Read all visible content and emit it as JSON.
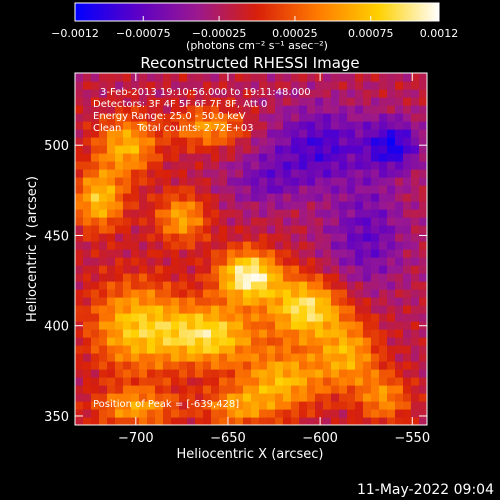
{
  "chart_data": {
    "type": "heatmap",
    "title": "Reconstructed RHESSI Image",
    "xlabel": "Heliocentric X (arcsec)",
    "ylabel": "Heliocentric Y (arcsec)",
    "xlim": [
      -733,
      -542
    ],
    "ylim": [
      345,
      540
    ],
    "x_ticks": [
      -700,
      -650,
      -600,
      -550
    ],
    "y_ticks": [
      350,
      400,
      450,
      500
    ],
    "x_tick_labels": [
      "−700",
      "−650",
      "−600",
      "−550"
    ],
    "y_tick_labels": [
      "350",
      "400",
      "450",
      "500"
    ],
    "colorbar": {
      "range": [
        -0.0012,
        0.0012
      ],
      "ticks": [
        -0.0012,
        -0.00075,
        -0.00025,
        0.00025,
        0.00075,
        0.0012
      ],
      "tick_labels": [
        "−0.0012",
        "−0.00075",
        "−0.00025",
        "0.00025",
        "0.00075",
        "0.0012"
      ],
      "units_label": "(photons cm⁻² s⁻¹ asec⁻²)",
      "colors": [
        "#0000ff",
        "#5a00c8",
        "#9a1890",
        "#d8200a",
        "#ff7a00",
        "#ffd000",
        "#ffffff"
      ]
    },
    "annotations": {
      "time_range": "3-Feb-2013 19:10:56.000 to 19:11:48.000",
      "detectors": "Detectors: 3F 4F 5F 6F 7F 8F, Att 0",
      "energy": "Energy Range: 25.0 - 50.0 keV",
      "clean_counts": "Clean     Total counts: 2.72E+03",
      "peak": "Position of Peak = [-639,428]"
    },
    "peak_position": [
      -639,
      428
    ],
    "sources": [
      {
        "x": -639,
        "y": 428,
        "amp": 1.0,
        "sx": 12,
        "sy": 10
      },
      {
        "x": -608,
        "y": 410,
        "amp": 0.85,
        "sx": 14,
        "sy": 12
      },
      {
        "x": -660,
        "y": 395,
        "amp": 0.8,
        "sx": 18,
        "sy": 12
      },
      {
        "x": -700,
        "y": 400,
        "amp": 0.7,
        "sx": 18,
        "sy": 18
      },
      {
        "x": -620,
        "y": 370,
        "amp": 0.65,
        "sx": 16,
        "sy": 12
      },
      {
        "x": -585,
        "y": 385,
        "amp": 0.6,
        "sx": 12,
        "sy": 14
      },
      {
        "x": -720,
        "y": 470,
        "amp": 0.7,
        "sx": 10,
        "sy": 12
      },
      {
        "x": -705,
        "y": 500,
        "amp": 0.65,
        "sx": 12,
        "sy": 12
      },
      {
        "x": -675,
        "y": 460,
        "amp": 0.6,
        "sx": 10,
        "sy": 10
      },
      {
        "x": -660,
        "y": 510,
        "amp": 0.55,
        "sx": 14,
        "sy": 8
      },
      {
        "x": -565,
        "y": 360,
        "amp": 0.5,
        "sx": 10,
        "sy": 10
      },
      {
        "x": -700,
        "y": 355,
        "amp": 0.55,
        "sx": 16,
        "sy": 8
      },
      {
        "x": -645,
        "y": 355,
        "amp": 0.5,
        "sx": 14,
        "sy": 8
      },
      {
        "x": -600,
        "y": 500,
        "amp": -0.5,
        "sx": 20,
        "sy": 15
      },
      {
        "x": -560,
        "y": 500,
        "amp": -0.6,
        "sx": 10,
        "sy": 10
      },
      {
        "x": -575,
        "y": 450,
        "amp": -0.4,
        "sx": 15,
        "sy": 20
      },
      {
        "x": -630,
        "y": 480,
        "amp": -0.3,
        "sx": 15,
        "sy": 10
      }
    ]
  },
  "footer": {
    "date": "11-May-2022 09:04"
  }
}
